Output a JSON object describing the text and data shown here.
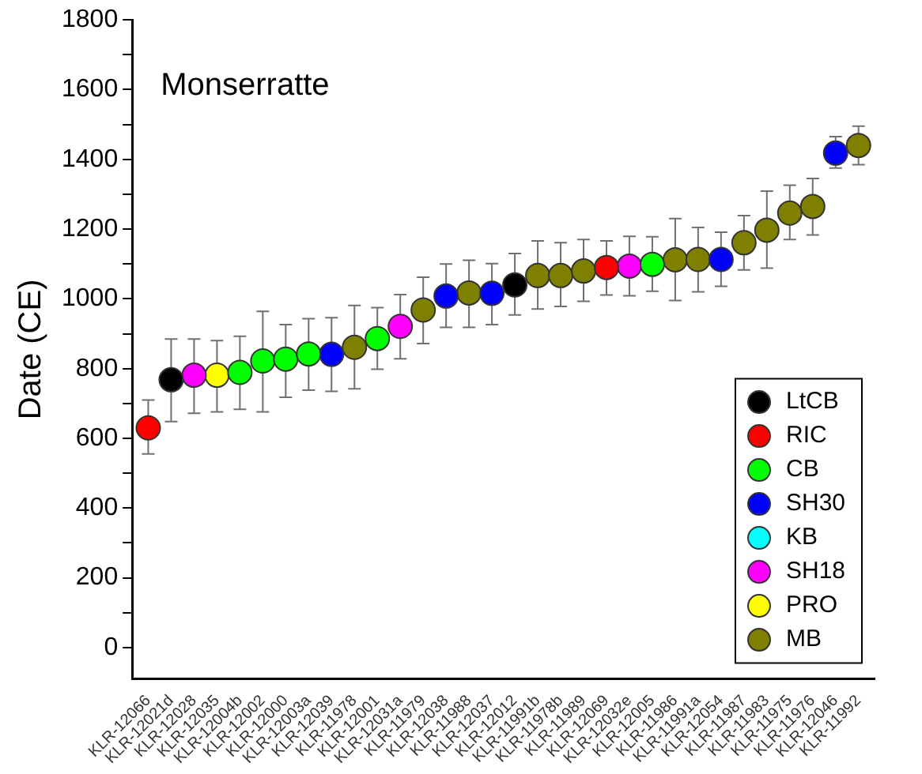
{
  "chart_data": {
    "type": "scatter",
    "title": "Monserratte",
    "ylabel": "Date (CE)",
    "categories": [
      "KLR-12066",
      "KLR-12021d",
      "KLR-12028",
      "KLR-12035",
      "KLR-12004b",
      "KLR-12002",
      "KLR-12000",
      "KLR-12003a",
      "KLR-12039",
      "KLR-11978",
      "KLR-12001",
      "KLR-12031a",
      "KLR-11979",
      "KLR-12038",
      "KLR-11988",
      "KLR-12037",
      "KLR-12012",
      "KLR-11991b",
      "KLR-11978b",
      "KLR-11989",
      "KLR-12069",
      "KLR-12032e",
      "KLR-12005",
      "KLR-11986",
      "KLR-11991a",
      "KLR-12054",
      "KLR-11987",
      "KLR-11983",
      "KLR-11975",
      "KLR-11976",
      "KLR-12046",
      "KLR-11992"
    ],
    "series": [
      {
        "name": "LtCB",
        "color": "#000000",
        "x": [
          "KLR-12021d",
          "KLR-12012"
        ],
        "values": [
          768,
          1040
        ],
        "errors": [
          [
            648,
            885
          ],
          [
            954,
            1130
          ]
        ]
      },
      {
        "name": "RIC",
        "color": "#ff0000",
        "x": [
          "KLR-12066",
          "KLR-12069"
        ],
        "values": [
          630,
          1090
        ],
        "errors": [
          [
            555,
            710
          ],
          [
            1011,
            1166
          ]
        ]
      },
      {
        "name": "CB",
        "color": "#00ff00",
        "x": [
          "KLR-12004b",
          "KLR-12002",
          "KLR-12000",
          "KLR-12003a",
          "KLR-12001",
          "KLR-12005"
        ],
        "values": [
          789,
          822,
          827,
          842,
          886,
          1099
        ],
        "errors": [
          [
            683,
            893
          ],
          [
            676,
            964
          ],
          [
            718,
            926
          ],
          [
            738,
            943
          ],
          [
            798,
            975
          ],
          [
            1022,
            1178
          ]
        ]
      },
      {
        "name": "SH30",
        "color": "#0000ff",
        "x": [
          "KLR-12039",
          "KLR-12038",
          "KLR-12037",
          "KLR-12054",
          "KLR-12046"
        ],
        "values": [
          841,
          1008,
          1016,
          1113,
          1418
        ],
        "errors": [
          [
            735,
            946
          ],
          [
            918,
            1100
          ],
          [
            926,
            1101
          ],
          [
            1036,
            1191
          ],
          [
            1375,
            1465
          ]
        ]
      },
      {
        "name": "KB",
        "color": "#00ffff",
        "values": [
          null,
          null,
          null,
          null,
          null,
          null,
          null,
          null,
          null,
          null,
          null,
          null,
          null,
          null,
          null,
          null,
          null,
          null,
          null,
          null,
          null,
          null,
          null,
          null,
          null,
          null,
          null,
          null,
          null,
          null,
          null,
          null
        ]
      },
      {
        "name": "SH18",
        "color": "#ff00ff",
        "x": [
          "KLR-12028",
          "KLR-12031a",
          "KLR-12032e"
        ],
        "values": [
          781,
          921,
          1094
        ],
        "errors": [
          [
            672,
            885
          ],
          [
            828,
            1012
          ],
          [
            1009,
            1179
          ]
        ]
      },
      {
        "name": "PRO",
        "color": "#ffff00",
        "x": [
          "KLR-12035"
        ],
        "values": [
          781
        ],
        "errors": [
          [
            676,
            880
          ]
        ]
      },
      {
        "name": "MB",
        "color": "#808000",
        "x": [
          "KLR-11978",
          "KLR-11979",
          "KLR-11988",
          "KLR-11991b",
          "KLR-11978b",
          "KLR-11989",
          "KLR-11986",
          "KLR-11991a",
          "KLR-11987",
          "KLR-11983",
          "KLR-11975",
          "KLR-11976",
          "KLR-11992"
        ],
        "values": [
          861,
          968,
          1017,
          1067,
          1067,
          1080,
          1112,
          1113,
          1161,
          1197,
          1246,
          1265,
          1440
        ],
        "errors": [
          [
            742,
            981
          ],
          [
            872,
            1062
          ],
          [
            918,
            1111
          ],
          [
            971,
            1166
          ],
          [
            978,
            1161
          ],
          [
            993,
            1170
          ],
          [
            995,
            1230
          ],
          [
            1020,
            1205
          ],
          [
            1083,
            1239
          ],
          [
            1088,
            1309
          ],
          [
            1170,
            1326
          ],
          [
            1183,
            1345
          ],
          [
            1385,
            1495
          ]
        ]
      }
    ],
    "ylim": [
      -90,
      1800
    ],
    "yticks": [
      0,
      {
        "value": 100,
        "label": null
      },
      200,
      {
        "value": 300,
        "label": null
      },
      400,
      {
        "value": 500,
        "label": null
      },
      600,
      {
        "value": 700,
        "label": null
      },
      800,
      {
        "value": 900,
        "label": null
      },
      1000,
      {
        "value": 1100,
        "label": null
      },
      1200,
      {
        "value": 1300,
        "label": null
      },
      1400,
      {
        "value": 1500,
        "label": null
      },
      1600,
      {
        "value": 1700,
        "label": null
      },
      1800
    ],
    "grid": false,
    "legend": "bottom right",
    "marker": "circle"
  }
}
